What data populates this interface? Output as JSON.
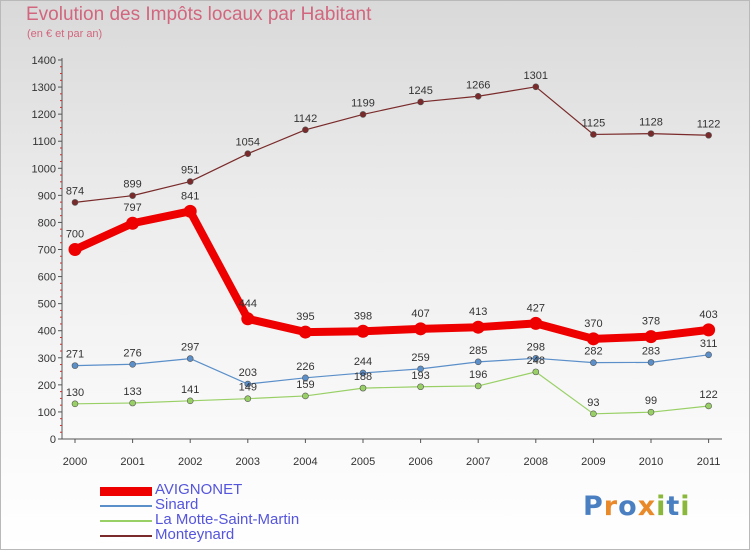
{
  "title": "Evolution des Impôts locaux par Habitant",
  "subtitle": "(en € et par an)",
  "logo": {
    "text": "Proxiti",
    "letter_colors": [
      "#4a7fc1",
      "#e8892a",
      "#4a7fc1",
      "#e8892a",
      "#8ab83a",
      "#4a7fc1",
      "#8ab83a"
    ]
  },
  "chart_data": {
    "type": "line",
    "title": "Evolution des Impôts locaux par Habitant",
    "subtitle": "(en € et par an)",
    "x": [
      "2000",
      "2001",
      "2002",
      "2003",
      "2004",
      "2005",
      "2006",
      "2007",
      "2008",
      "2009",
      "2010",
      "2011"
    ],
    "ylim": [
      0,
      1400
    ],
    "yticks": [
      "0",
      "100",
      "200",
      "300",
      "400",
      "500",
      "600",
      "700",
      "800",
      "900",
      "1000",
      "1100",
      "1200",
      "1300",
      "1400"
    ],
    "grid": false,
    "legend_position": "bottom-left",
    "series": [
      {
        "name": "AVIGNONET",
        "color": "#ee0000",
        "emphasis": "thick",
        "values": [
          700,
          797,
          841,
          444,
          395,
          398,
          407,
          413,
          427,
          370,
          378,
          403
        ],
        "labels": [
          "700",
          "797",
          "841",
          "444",
          "395",
          "398",
          "407",
          "413",
          "427",
          "370",
          "378",
          "403"
        ]
      },
      {
        "name": "Sinard",
        "color": "#5b8fc9",
        "emphasis": "thin",
        "values": [
          271,
          276,
          297,
          203,
          226,
          244,
          259,
          285,
          298,
          282,
          283,
          311
        ],
        "labels": [
          "271",
          "276",
          "297",
          "203",
          "226",
          "244",
          "259",
          "285",
          "298",
          "282",
          "283",
          "311"
        ]
      },
      {
        "name": "La Motte-Saint-Martin",
        "color": "#99d066",
        "emphasis": "thin",
        "values": [
          130,
          133,
          141,
          149,
          159,
          188,
          193,
          196,
          248,
          93,
          99,
          122
        ],
        "labels": [
          "130",
          "133",
          "141",
          "149",
          "159",
          "188",
          "193",
          "196",
          "248",
          "93",
          "99",
          "122"
        ]
      },
      {
        "name": "Monteynard",
        "color": "#7a2a2a",
        "emphasis": "thin",
        "values": [
          874,
          899,
          951,
          1054,
          1142,
          1199,
          1245,
          1266,
          1301,
          1125,
          1128,
          1122
        ],
        "labels": [
          "874",
          "899",
          "951",
          "1054",
          "1142",
          "1199",
          "1245",
          "1266",
          "1301",
          "1125",
          "1128",
          "1122"
        ]
      }
    ]
  }
}
